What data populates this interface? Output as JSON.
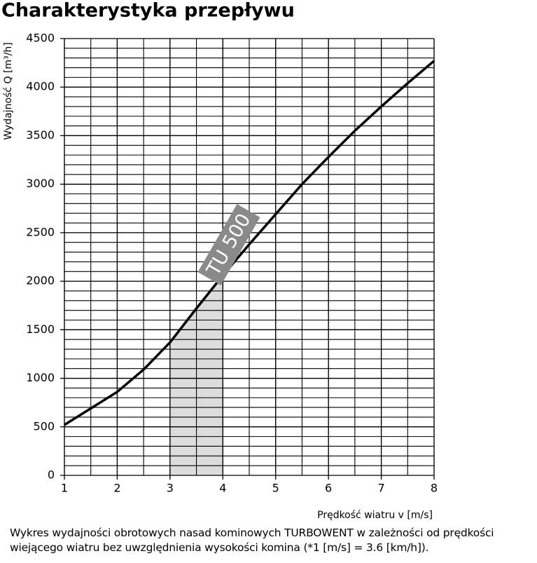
{
  "chart_data": {
    "type": "line",
    "title": "Charakterystyka przepływu",
    "x_label": "Prędkość wiatru v [m/s]",
    "y_label": "Wydajność Q [m³/h]",
    "x": [
      1,
      1.5,
      2,
      2.5,
      3,
      3.5,
      4,
      4.5,
      5,
      5.5,
      6,
      6.5,
      7,
      7.5,
      8
    ],
    "series": [
      {
        "name": "TU 500",
        "color": "#000000",
        "values": [
          520,
          690,
          860,
          1090,
          1370,
          1720,
          2060,
          2380,
          2690,
          3000,
          3280,
          3550,
          3800,
          4040,
          4270
        ]
      }
    ],
    "xlim": [
      1,
      8
    ],
    "xticks": [
      1,
      2,
      3,
      4,
      5,
      6,
      7,
      8
    ],
    "ylim": [
      0,
      4500
    ],
    "yticks": [
      0,
      500,
      1000,
      1500,
      2000,
      2500,
      3000,
      3500,
      4000,
      4500
    ],
    "grid": true,
    "x_minor_step": 0.5,
    "y_minor_step": 100,
    "highlight_x": [
      3,
      4
    ],
    "highlight_color": "#dcdcdc",
    "label_color": "#8a8a8a",
    "caption_lines": [
      "Wykres wydajności obrotowych nasad kominowych TURBOWENT w zależności od prędkości",
      "wiejącego wiatru bez uwzględnienia wysokości komina (*1 [m/s] = 3.6 [km/h])."
    ]
  }
}
